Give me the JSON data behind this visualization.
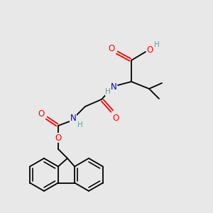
{
  "bg_color": "#e8e8e8",
  "atom_colors": {
    "O": "#ff0000",
    "N": "#0000cc",
    "C": "#000000",
    "H": "#5f9ea0"
  },
  "bond_color": "#000000",
  "lw": 1.3,
  "fontsize": 8.5
}
